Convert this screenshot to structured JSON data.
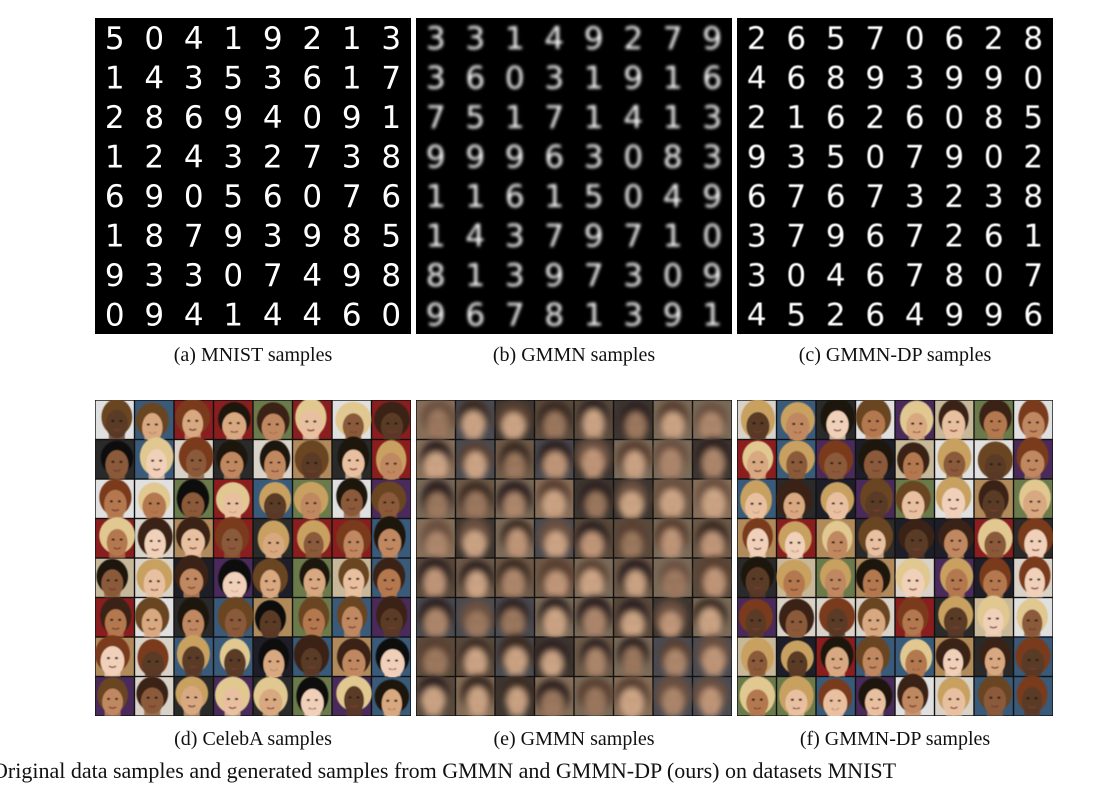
{
  "panels": {
    "a": {
      "label": "(a)  MNIST samples",
      "digits": [
        "50419213",
        "14353617",
        "28694091",
        "12432738",
        "69056076",
        "18793985",
        "93307498",
        "09414460"
      ]
    },
    "b": {
      "label": "(b)  GMMN samples",
      "digits": [
        "33149279",
        "36031916",
        "75171413",
        "99963083",
        "11615049",
        "14379710",
        "81397309",
        "96781391"
      ]
    },
    "c": {
      "label": "(c)  GMMN-DP samples",
      "digits": [
        "26570628",
        "46893990",
        "21626085",
        "93507902",
        "67673238",
        "37967261",
        "30467807",
        "45264996"
      ]
    },
    "d": {
      "label": "(d)  CelebA samples"
    },
    "e": {
      "label": "(e)  GMMN samples"
    },
    "f": {
      "label": "(f)  GMMN-DP samples"
    }
  },
  "figure_caption": "Original data samples and generated samples from GMMN and GMMN-DP (ours) on datasets MNIST"
}
